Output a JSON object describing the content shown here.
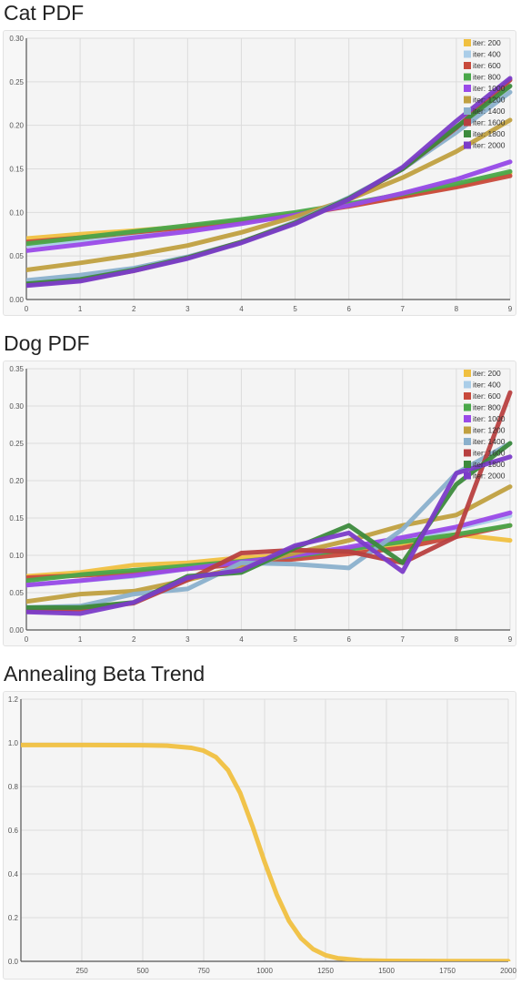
{
  "charts": [
    {
      "id": "cat",
      "title": "Cat PDF",
      "chart_data": {
        "type": "line",
        "title": "Cat PDF",
        "x": [
          0,
          1,
          2,
          3,
          4,
          5,
          6,
          7,
          8,
          9
        ],
        "ylim": [
          0,
          0.3
        ],
        "yticks": [
          "0.00",
          "0.05",
          "0.10",
          "0.15",
          "0.20",
          "0.25",
          "0.30"
        ],
        "xticks": [
          "0",
          "1",
          "2",
          "3",
          "4",
          "5",
          "6",
          "7",
          "8",
          "9"
        ],
        "grid": true,
        "legend_position": "top-right",
        "series": [
          {
            "name": "iter: 200",
            "color": "#f0c040",
            "values": [
              0.07,
              0.075,
              0.079,
              0.084,
              0.09,
              0.098,
              0.108,
              0.118,
              0.13,
              0.145
            ]
          },
          {
            "name": "iter: 400",
            "color": "#aacde8",
            "values": [
              0.062,
              0.067,
              0.072,
              0.08,
              0.088,
              0.097,
              0.108,
              0.122,
              0.138,
              0.158
            ]
          },
          {
            "name": "iter: 600",
            "color": "#c84a3c",
            "values": [
              0.066,
              0.071,
              0.077,
              0.083,
              0.09,
              0.097,
              0.107,
              0.118,
              0.129,
              0.142
            ]
          },
          {
            "name": "iter: 800",
            "color": "#4aa84a",
            "values": [
              0.064,
              0.071,
              0.078,
              0.085,
              0.092,
              0.1,
              0.11,
              0.121,
              0.133,
              0.147
            ]
          },
          {
            "name": "iter: 1000",
            "color": "#9a4ae8",
            "values": [
              0.056,
              0.063,
              0.071,
              0.078,
              0.087,
              0.097,
              0.108,
              0.122,
              0.138,
              0.158
            ]
          },
          {
            "name": "iter: 1200",
            "color": "#c0a040",
            "values": [
              0.034,
              0.042,
              0.051,
              0.062,
              0.077,
              0.095,
              0.115,
              0.14,
              0.17,
              0.206
            ]
          },
          {
            "name": "iter: 1400",
            "color": "#8ab0cc",
            "values": [
              0.022,
              0.028,
              0.036,
              0.049,
              0.066,
              0.089,
              0.117,
              0.15,
              0.192,
              0.238
            ]
          },
          {
            "name": "iter: 1600",
            "color": "#b84040",
            "values": [
              0.017,
              0.022,
              0.033,
              0.048,
              0.066,
              0.088,
              0.115,
              0.15,
              0.197,
              0.252
            ]
          },
          {
            "name": "iter: 1800",
            "color": "#3c8a3c",
            "values": [
              0.018,
              0.023,
              0.034,
              0.048,
              0.066,
              0.088,
              0.116,
              0.15,
              0.198,
              0.245
            ]
          },
          {
            "name": "iter: 2000",
            "color": "#7b3cc8",
            "values": [
              0.016,
              0.021,
              0.033,
              0.047,
              0.065,
              0.087,
              0.115,
              0.152,
              0.205,
              0.254
            ]
          }
        ]
      }
    },
    {
      "id": "dog",
      "title": "Dog PDF",
      "chart_data": {
        "type": "line",
        "title": "Dog PDF",
        "x": [
          0,
          1,
          2,
          3,
          4,
          5,
          6,
          7,
          8,
          9
        ],
        "ylim": [
          0,
          0.35
        ],
        "yticks": [
          "0.00",
          "0.05",
          "0.10",
          "0.15",
          "0.20",
          "0.25",
          "0.30",
          "0.35"
        ],
        "xticks": [
          "0",
          "1",
          "2",
          "3",
          "4",
          "5",
          "6",
          "7",
          "8",
          "9"
        ],
        "grid": true,
        "legend_position": "top-right",
        "series": [
          {
            "name": "iter: 200",
            "color": "#f0c040",
            "values": [
              0.072,
              0.077,
              0.087,
              0.09,
              0.097,
              0.1,
              0.107,
              0.115,
              0.128,
              0.12
            ]
          },
          {
            "name": "iter: 400",
            "color": "#aacde8",
            "values": [
              0.06,
              0.066,
              0.072,
              0.082,
              0.091,
              0.097,
              0.108,
              0.12,
              0.136,
              0.153
            ]
          },
          {
            "name": "iter: 600",
            "color": "#c84a3c",
            "values": [
              0.07,
              0.073,
              0.077,
              0.082,
              0.088,
              0.095,
              0.102,
              0.11,
              0.125,
              0.14
            ]
          },
          {
            "name": "iter: 800",
            "color": "#4aa84a",
            "values": [
              0.066,
              0.074,
              0.08,
              0.086,
              0.092,
              0.099,
              0.108,
              0.118,
              0.128,
              0.14
            ]
          },
          {
            "name": "iter: 1000",
            "color": "#9a4ae8",
            "values": [
              0.06,
              0.066,
              0.073,
              0.082,
              0.091,
              0.1,
              0.111,
              0.124,
              0.138,
              0.157
            ]
          },
          {
            "name": "iter: 1200",
            "color": "#c0a040",
            "values": [
              0.038,
              0.048,
              0.052,
              0.067,
              0.085,
              0.103,
              0.12,
              0.14,
              0.154,
              0.192
            ]
          },
          {
            "name": "iter: 1400",
            "color": "#8ab0cc",
            "values": [
              0.03,
              0.032,
              0.048,
              0.055,
              0.09,
              0.088,
              0.083,
              0.135,
              0.21,
              0.25
            ]
          },
          {
            "name": "iter: 1600",
            "color": "#b84040",
            "values": [
              0.025,
              0.028,
              0.036,
              0.067,
              0.103,
              0.107,
              0.105,
              0.09,
              0.125,
              0.318
            ]
          },
          {
            "name": "iter: 1800",
            "color": "#3c8a3c",
            "values": [
              0.03,
              0.03,
              0.037,
              0.072,
              0.077,
              0.11,
              0.14,
              0.09,
              0.195,
              0.25
            ]
          },
          {
            "name": "iter: 2000",
            "color": "#7b3cc8",
            "values": [
              0.024,
              0.022,
              0.037,
              0.07,
              0.08,
              0.113,
              0.13,
              0.078,
              0.21,
              0.232
            ]
          }
        ]
      }
    },
    {
      "id": "beta",
      "title": "Annealing Beta Trend",
      "chart_data": {
        "type": "line",
        "title": "Annealing Beta Trend",
        "xlim": [
          0,
          2000
        ],
        "ylim": [
          0,
          1.2
        ],
        "yticks": [
          "0.0",
          "0.2",
          "0.4",
          "0.6",
          "0.8",
          "1.0",
          "1.2"
        ],
        "xticks": [
          "250",
          "500",
          "750",
          "1000",
          "1250",
          "1500",
          "1750",
          "2000"
        ],
        "grid": true,
        "series": [
          {
            "color": "#f0c040",
            "x": [
              0,
              250,
              500,
              600,
              700,
              750,
              800,
              850,
              900,
              950,
              1000,
              1050,
              1100,
              1150,
              1200,
              1250,
              1300,
              1400,
              1500,
              1750,
              2000
            ],
            "values": [
              0.99,
              0.99,
              0.989,
              0.987,
              0.977,
              0.964,
              0.935,
              0.875,
              0.77,
              0.62,
              0.455,
              0.305,
              0.185,
              0.105,
              0.055,
              0.028,
              0.014,
              0.004,
              0.002,
              0.001,
              0.001
            ]
          }
        ]
      }
    }
  ]
}
